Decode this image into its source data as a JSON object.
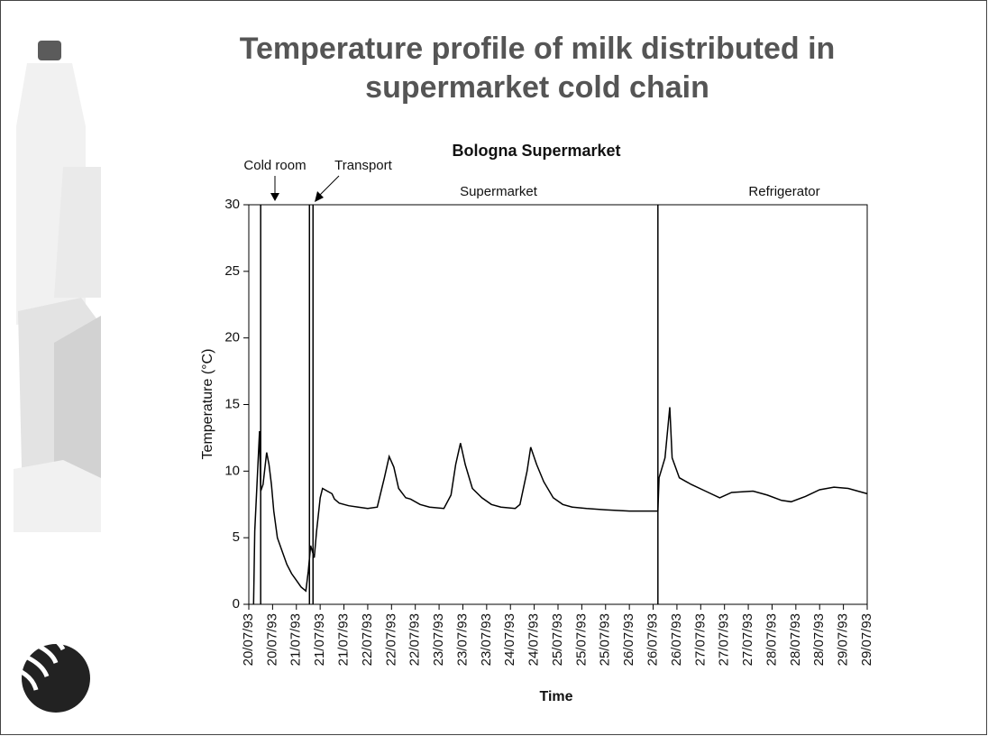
{
  "slide_title": [
    "Temperature profile of milk distributed in",
    "supermarket cold chain"
  ],
  "chart_data": {
    "type": "line",
    "title": "Bologna Supermarket",
    "x_label": "Time",
    "y_label": "Temperature (°C)",
    "annotations": [
      "Cold room",
      "Transport",
      "Supermarket",
      "Refrigerator"
    ],
    "phase_boundaries": [
      0.5,
      2.55,
      2.7,
      17.2
    ],
    "xlim": [
      0,
      26
    ],
    "xticks": [
      {
        "value": 0,
        "label": "20/07/93"
      },
      {
        "value": 1,
        "label": "20/07/93"
      },
      {
        "value": 2,
        "label": "21/07/93"
      },
      {
        "value": 3,
        "label": "21/07/93"
      },
      {
        "value": 4,
        "label": "21/07/93"
      },
      {
        "value": 5,
        "label": "22/07/93"
      },
      {
        "value": 6,
        "label": "22/07/93"
      },
      {
        "value": 7,
        "label": "22/07/93"
      },
      {
        "value": 8,
        "label": "23/07/93"
      },
      {
        "value": 9,
        "label": "23/07/93"
      },
      {
        "value": 10,
        "label": "23/07/93"
      },
      {
        "value": 11,
        "label": "24/07/93"
      },
      {
        "value": 12,
        "label": "24/07/93"
      },
      {
        "value": 13,
        "label": "25/07/93"
      },
      {
        "value": 14,
        "label": "25/07/93"
      },
      {
        "value": 15,
        "label": "25/07/93"
      },
      {
        "value": 16,
        "label": "26/07/93"
      },
      {
        "value": 17,
        "label": "26/07/93"
      },
      {
        "value": 18,
        "label": "26/07/93"
      },
      {
        "value": 19,
        "label": "27/07/93"
      },
      {
        "value": 20,
        "label": "27/07/93"
      },
      {
        "value": 21,
        "label": "27/07/93"
      },
      {
        "value": 22,
        "label": "28/07/93"
      },
      {
        "value": 23,
        "label": "28/07/93"
      },
      {
        "value": 24,
        "label": "28/07/93"
      },
      {
        "value": 25,
        "label": "29/07/93"
      },
      {
        "value": 26,
        "label": "29/07/93"
      }
    ],
    "ylim": [
      0,
      30
    ],
    "yticks": [
      0,
      5,
      10,
      15,
      20,
      25,
      30
    ],
    "series": [
      {
        "color": "#000000",
        "x": [
          0.2,
          0.25,
          0.45,
          0.5,
          0.6,
          0.75,
          0.85,
          0.95,
          1.05,
          1.2,
          1.4,
          1.6,
          1.8,
          2.0,
          2.2,
          2.4,
          2.5,
          2.6,
          2.75,
          2.85,
          3.0,
          3.1,
          3.3,
          3.5,
          3.6,
          3.8,
          4.2,
          4.6,
          5.0,
          5.4,
          5.7,
          5.9,
          6.1,
          6.3,
          6.6,
          6.8,
          7.2,
          7.6,
          8.2,
          8.5,
          8.7,
          8.9,
          9.1,
          9.4,
          9.8,
          10.2,
          10.6,
          11.2,
          11.4,
          11.7,
          11.85,
          12.1,
          12.4,
          12.8,
          13.2,
          13.6,
          14.2,
          15,
          16,
          17.2,
          17.25,
          17.5,
          17.7,
          17.8,
          18.1,
          18.6,
          19.2,
          19.8,
          20.3,
          21.2,
          21.8,
          22.4,
          22.8,
          23.4,
          24,
          24.6,
          25.2,
          26
        ],
        "values": [
          0,
          5.5,
          13,
          8.5,
          9,
          11.4,
          10.5,
          9,
          7,
          5,
          4,
          3,
          2.3,
          1.8,
          1.3,
          1.0,
          2.5,
          4.4,
          3.5,
          5.5,
          8.0,
          8.7,
          8.5,
          8.3,
          7.9,
          7.6,
          7.4,
          7.3,
          7.2,
          7.3,
          9.5,
          11.1,
          10.3,
          8.7,
          8.0,
          7.9,
          7.5,
          7.3,
          7.2,
          8.2,
          10.5,
          12.1,
          10.5,
          8.7,
          8,
          7.5,
          7.3,
          7.2,
          7.5,
          10,
          11.8,
          10.5,
          9.2,
          8,
          7.5,
          7.3,
          7.2,
          7.1,
          7.0,
          7.0,
          9.5,
          11,
          14.8,
          11,
          9.5,
          9,
          8.5,
          8.0,
          8.4,
          8.5,
          8.2,
          7.8,
          7.7,
          8.1,
          8.6,
          8.8,
          8.7,
          8.3
        ]
      }
    ]
  }
}
